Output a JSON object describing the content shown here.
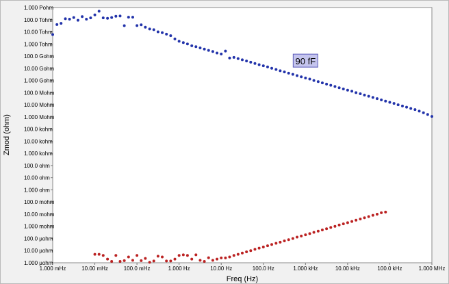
{
  "chart_data": {
    "type": "scatter",
    "xlabel": "Freq (Hz)",
    "ylabel": "Zmod (ohm)",
    "x_scale": "log",
    "y_scale": "log",
    "xlim": [
      0.001,
      1000000
    ],
    "ylim": [
      1e-06,
      1000000000000000.0
    ],
    "grid": false,
    "x_ticks": [
      {
        "value": 0.001,
        "label": "1.000 mHz"
      },
      {
        "value": 0.01,
        "label": "10.00 mHz"
      },
      {
        "value": 0.1,
        "label": "100.0 mHz"
      },
      {
        "value": 1,
        "label": "1.000 Hz"
      },
      {
        "value": 10,
        "label": "10.00 Hz"
      },
      {
        "value": 100,
        "label": "100.0 Hz"
      },
      {
        "value": 1000,
        "label": "1.000 kHz"
      },
      {
        "value": 10000,
        "label": "10.00 kHz"
      },
      {
        "value": 100000,
        "label": "100.0 kHz"
      },
      {
        "value": 1000000,
        "label": "1.000 MHz"
      }
    ],
    "y_ticks": [
      {
        "value": 1000000000000000.0,
        "label": "1.000 Pohm"
      },
      {
        "value": 100000000000000.0,
        "label": "100.0 Tohm"
      },
      {
        "value": 10000000000000.0,
        "label": "10.00 Tohm"
      },
      {
        "value": 1000000000000.0,
        "label": "1.000 Tohm"
      },
      {
        "value": 100000000000.0,
        "label": "100.0 Gohm"
      },
      {
        "value": 10000000000.0,
        "label": "10.00 Gohm"
      },
      {
        "value": 1000000000.0,
        "label": "1.000 Gohm"
      },
      {
        "value": 100000000.0,
        "label": "100.0 Mohm"
      },
      {
        "value": 10000000.0,
        "label": "10.00 Mohm"
      },
      {
        "value": 1000000.0,
        "label": "1.000 Mohm"
      },
      {
        "value": 100000.0,
        "label": "100.0 kohm"
      },
      {
        "value": 10000.0,
        "label": "10.00 kohm"
      },
      {
        "value": 1000.0,
        "label": "1.000 kohm"
      },
      {
        "value": 100,
        "label": "100.0 ohm"
      },
      {
        "value": 10,
        "label": "10.00 ohm"
      },
      {
        "value": 1,
        "label": "1.000 ohm"
      },
      {
        "value": 0.1,
        "label": "100.0 mohm"
      },
      {
        "value": 0.01,
        "label": "10.00 mohm"
      },
      {
        "value": 0.001,
        "label": "1.000 mohm"
      },
      {
        "value": 0.0001,
        "label": "100.0 µohm"
      },
      {
        "value": 1e-05,
        "label": "10.00 µohm"
      },
      {
        "value": 1e-06,
        "label": "1.000 µohm"
      }
    ],
    "annotations": [
      {
        "text": "90 fF",
        "x": 1000,
        "y": 40000000000.0,
        "background": "#c5c5ee",
        "border": "#5858b8"
      }
    ],
    "series": [
      {
        "color": "#2233aa",
        "points": [
          [
            0.001,
            6000000000000.0
          ],
          [
            0.00126,
            40000000000000.0
          ],
          [
            0.00158,
            50000000000000.0
          ],
          [
            0.002,
            120000000000000.0
          ],
          [
            0.00251,
            110000000000000.0
          ],
          [
            0.00316,
            150000000000000.0
          ],
          [
            0.00398,
            90000000000000.0
          ],
          [
            0.00501,
            180000000000000.0
          ],
          [
            0.00631,
            110000000000000.0
          ],
          [
            0.00794,
            140000000000000.0
          ],
          [
            0.01,
            250000000000000.0
          ],
          [
            0.0126,
            500000000000000.0
          ],
          [
            0.0158,
            140000000000000.0
          ],
          [
            0.02,
            130000000000000.0
          ],
          [
            0.0251,
            150000000000000.0
          ],
          [
            0.0316,
            190000000000000.0
          ],
          [
            0.0398,
            200000000000000.0
          ],
          [
            0.0501,
            32000000000000.0
          ],
          [
            0.0631,
            160000000000000.0
          ],
          [
            0.0794,
            160000000000000.0
          ],
          [
            0.1,
            33000000000000.0
          ],
          [
            0.126,
            38000000000000.0
          ],
          [
            0.158,
            24000000000000.0
          ],
          [
            0.2,
            17000000000000.0
          ],
          [
            0.251,
            15000000000000.0
          ],
          [
            0.316,
            10000000000000.0
          ],
          [
            0.398,
            8500000000000.0
          ],
          [
            0.501,
            6500000000000.0
          ],
          [
            0.631,
            4800000000000.0
          ],
          [
            0.794,
            2600000000000.0
          ],
          [
            1,
            1700000000000.0
          ],
          [
            1.26,
            1300000000000.0
          ],
          [
            1.58,
            1000000000000.0
          ],
          [
            2,
            720000000000.0
          ],
          [
            2.51,
            600000000000.0
          ],
          [
            3.16,
            480000000000.0
          ],
          [
            3.98,
            380000000000.0
          ],
          [
            5.01,
            300000000000.0
          ],
          [
            6.31,
            240000000000.0
          ],
          [
            7.94,
            180000000000.0
          ],
          [
            10,
            150000000000.0
          ],
          [
            12.6,
            260000000000.0
          ],
          [
            15.8,
            70000000000.0
          ],
          [
            20,
            79000000000.0
          ],
          [
            25.1,
            63000000000.0
          ],
          [
            31.6,
            50000000000.0
          ],
          [
            39.8,
            40000000000.0
          ],
          [
            50.1,
            32000000000.0
          ],
          [
            63.1,
            25000000000.0
          ],
          [
            79.4,
            20000000000.0
          ],
          [
            100,
            16000000000.0
          ],
          [
            126,
            13000000000.0
          ],
          [
            158,
            10000000000.0
          ],
          [
            200,
            8000000000.0
          ],
          [
            251,
            6300000000.0
          ],
          [
            316,
            5000000000.0
          ],
          [
            398,
            4000000000.0
          ],
          [
            501,
            3200000000.0
          ],
          [
            631,
            2500000000.0
          ],
          [
            794,
            2000000000.0
          ],
          [
            1000,
            1600000000.0
          ],
          [
            1260,
            1300000000.0
          ],
          [
            1580,
            1000000000.0
          ],
          [
            2000,
            800000000.0
          ],
          [
            2510,
            630000000.0
          ],
          [
            3160,
            500000000.0
          ],
          [
            3980,
            400000000.0
          ],
          [
            5010,
            320000000.0
          ],
          [
            6310,
            250000000.0
          ],
          [
            7940,
            200000000.0
          ],
          [
            10000,
            160000000.0
          ],
          [
            12600,
            130000000.0
          ],
          [
            15800,
            100000000.0
          ],
          [
            20000,
            80000000.0
          ],
          [
            25100,
            63000000.0
          ],
          [
            31600,
            50000000.0
          ],
          [
            39800,
            40000000.0
          ],
          [
            50100,
            32000000.0
          ],
          [
            63100,
            25000000.0
          ],
          [
            79400,
            20000000.0
          ],
          [
            100000,
            16000000.0
          ],
          [
            126000,
            13000000.0
          ],
          [
            158000,
            10000000.0
          ],
          [
            200000,
            8000000.0
          ],
          [
            251000,
            6300000.0
          ],
          [
            316000,
            5000000.0
          ],
          [
            398000,
            4000000.0
          ],
          [
            501000,
            3000000.0
          ],
          [
            631000,
            2200000.0
          ],
          [
            794000,
            1600000.0
          ],
          [
            1000000,
            1100000.0
          ]
        ]
      },
      {
        "color": "#bb2222",
        "points": [
          [
            0.01,
            5e-06
          ],
          [
            0.0126,
            5e-06
          ],
          [
            0.0158,
            4e-06
          ],
          [
            0.02,
            2e-06
          ],
          [
            0.0251,
            1.3e-06
          ],
          [
            0.0316,
            4e-06
          ],
          [
            0.0398,
            1.3e-06
          ],
          [
            0.0501,
            1.5e-06
          ],
          [
            0.0631,
            3e-06
          ],
          [
            0.0794,
            1.6e-06
          ],
          [
            0.1,
            4e-06
          ],
          [
            0.126,
            1.5e-06
          ],
          [
            0.158,
            2.3e-06
          ],
          [
            0.2,
            1.1e-06
          ],
          [
            0.251,
            1.4e-06
          ],
          [
            0.316,
            3.5e-06
          ],
          [
            0.398,
            3e-06
          ],
          [
            0.501,
            1.4e-06
          ],
          [
            0.631,
            1.4e-06
          ],
          [
            0.794,
            2e-06
          ],
          [
            1,
            4e-06
          ],
          [
            1.26,
            4.5e-06
          ],
          [
            1.58,
            4e-06
          ],
          [
            2,
            2e-06
          ],
          [
            2.51,
            4.5e-06
          ],
          [
            3.16,
            1.6e-06
          ],
          [
            3.98,
            1.3e-06
          ],
          [
            5.01,
            2.6e-06
          ],
          [
            6.31,
            1.6e-06
          ],
          [
            7.94,
            2e-06
          ],
          [
            10,
            2.5e-06
          ],
          [
            12.6,
            2.5e-06
          ],
          [
            15.8,
            3e-06
          ],
          [
            20,
            4e-06
          ],
          [
            25.1,
            5e-06
          ],
          [
            31.6,
            6.3e-06
          ],
          [
            39.8,
            8e-06
          ],
          [
            50.1,
            1e-05
          ],
          [
            63.1,
            1.3e-05
          ],
          [
            79.4,
            1.6e-05
          ],
          [
            100,
            2e-05
          ],
          [
            126,
            2.5e-05
          ],
          [
            158,
            3.2e-05
          ],
          [
            200,
            4e-05
          ],
          [
            251,
            5e-05
          ],
          [
            316,
            6.3e-05
          ],
          [
            398,
            8e-05
          ],
          [
            501,
            0.0001
          ],
          [
            631,
            0.00013
          ],
          [
            794,
            0.00016
          ],
          [
            1000,
            0.0002
          ],
          [
            1260,
            0.00025
          ],
          [
            1580,
            0.00032
          ],
          [
            2000,
            0.0004
          ],
          [
            2510,
            0.0005
          ],
          [
            3160,
            0.00063
          ],
          [
            3980,
            0.0008
          ],
          [
            5010,
            0.001
          ],
          [
            6310,
            0.0013
          ],
          [
            7940,
            0.0016
          ],
          [
            10000,
            0.002
          ],
          [
            12600,
            0.0025
          ],
          [
            15800,
            0.0032
          ],
          [
            20000,
            0.004
          ],
          [
            25100,
            0.005
          ],
          [
            31600,
            0.0063
          ],
          [
            39800,
            0.008
          ],
          [
            50100,
            0.01
          ],
          [
            63100,
            0.013
          ],
          [
            79400,
            0.015
          ]
        ]
      }
    ]
  }
}
